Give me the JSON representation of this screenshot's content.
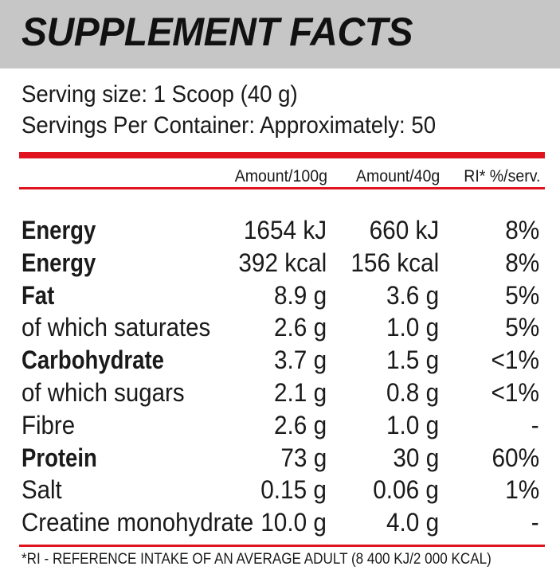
{
  "title": "SUPPLEMENT FACTS",
  "serving_size": "Serving size: 1 Scoop (40 g)",
  "servings_per_container": "Servings Per Container: Approximately: 50",
  "columns": [
    "Amount/100g",
    "Amount/40g",
    "RI* %/serv."
  ],
  "rows": [
    {
      "name": "Energy",
      "bold": true,
      "per100": "1654 kJ",
      "per40": "660 kJ",
      "ri": "8%"
    },
    {
      "name": "Energy",
      "bold": true,
      "per100": "392 kcal",
      "per40": "156 kcal",
      "ri": "8%"
    },
    {
      "name": "Fat",
      "bold": true,
      "per100": "8.9 g",
      "per40": "3.6 g",
      "ri": "5%"
    },
    {
      "name": "of which saturates",
      "bold": false,
      "per100": "2.6 g",
      "per40": "1.0 g",
      "ri": "5%"
    },
    {
      "name": "Carbohydrate",
      "bold": true,
      "per100": "3.7 g",
      "per40": "1.5 g",
      "ri": "<1%"
    },
    {
      "name": "of which sugars",
      "bold": false,
      "per100": "2.1 g",
      "per40": "0.8 g",
      "ri": "<1%"
    },
    {
      "name": "Fibre",
      "bold": false,
      "per100": "2.6 g",
      "per40": "1.0 g",
      "ri": "-"
    },
    {
      "name": "Protein",
      "bold": true,
      "per100": "73 g",
      "per40": "30 g",
      "ri": "60%"
    },
    {
      "name": "Salt",
      "bold": false,
      "per100": "0.15 g",
      "per40": "0.06 g",
      "ri": "1%"
    },
    {
      "name": "Creatine monohydrate",
      "bold": false,
      "per100": "10.0 g",
      "per40": "4.0 g",
      "ri": "-"
    }
  ],
  "footnote": "*RI - REFERENCE INTAKE OF AN AVERAGE ADULT (8 400 KJ/2 000 KCAL)",
  "colors": {
    "header_bg": "#c6c6c6",
    "accent_red": "#e0141e",
    "text": "#1a1a1a"
  }
}
